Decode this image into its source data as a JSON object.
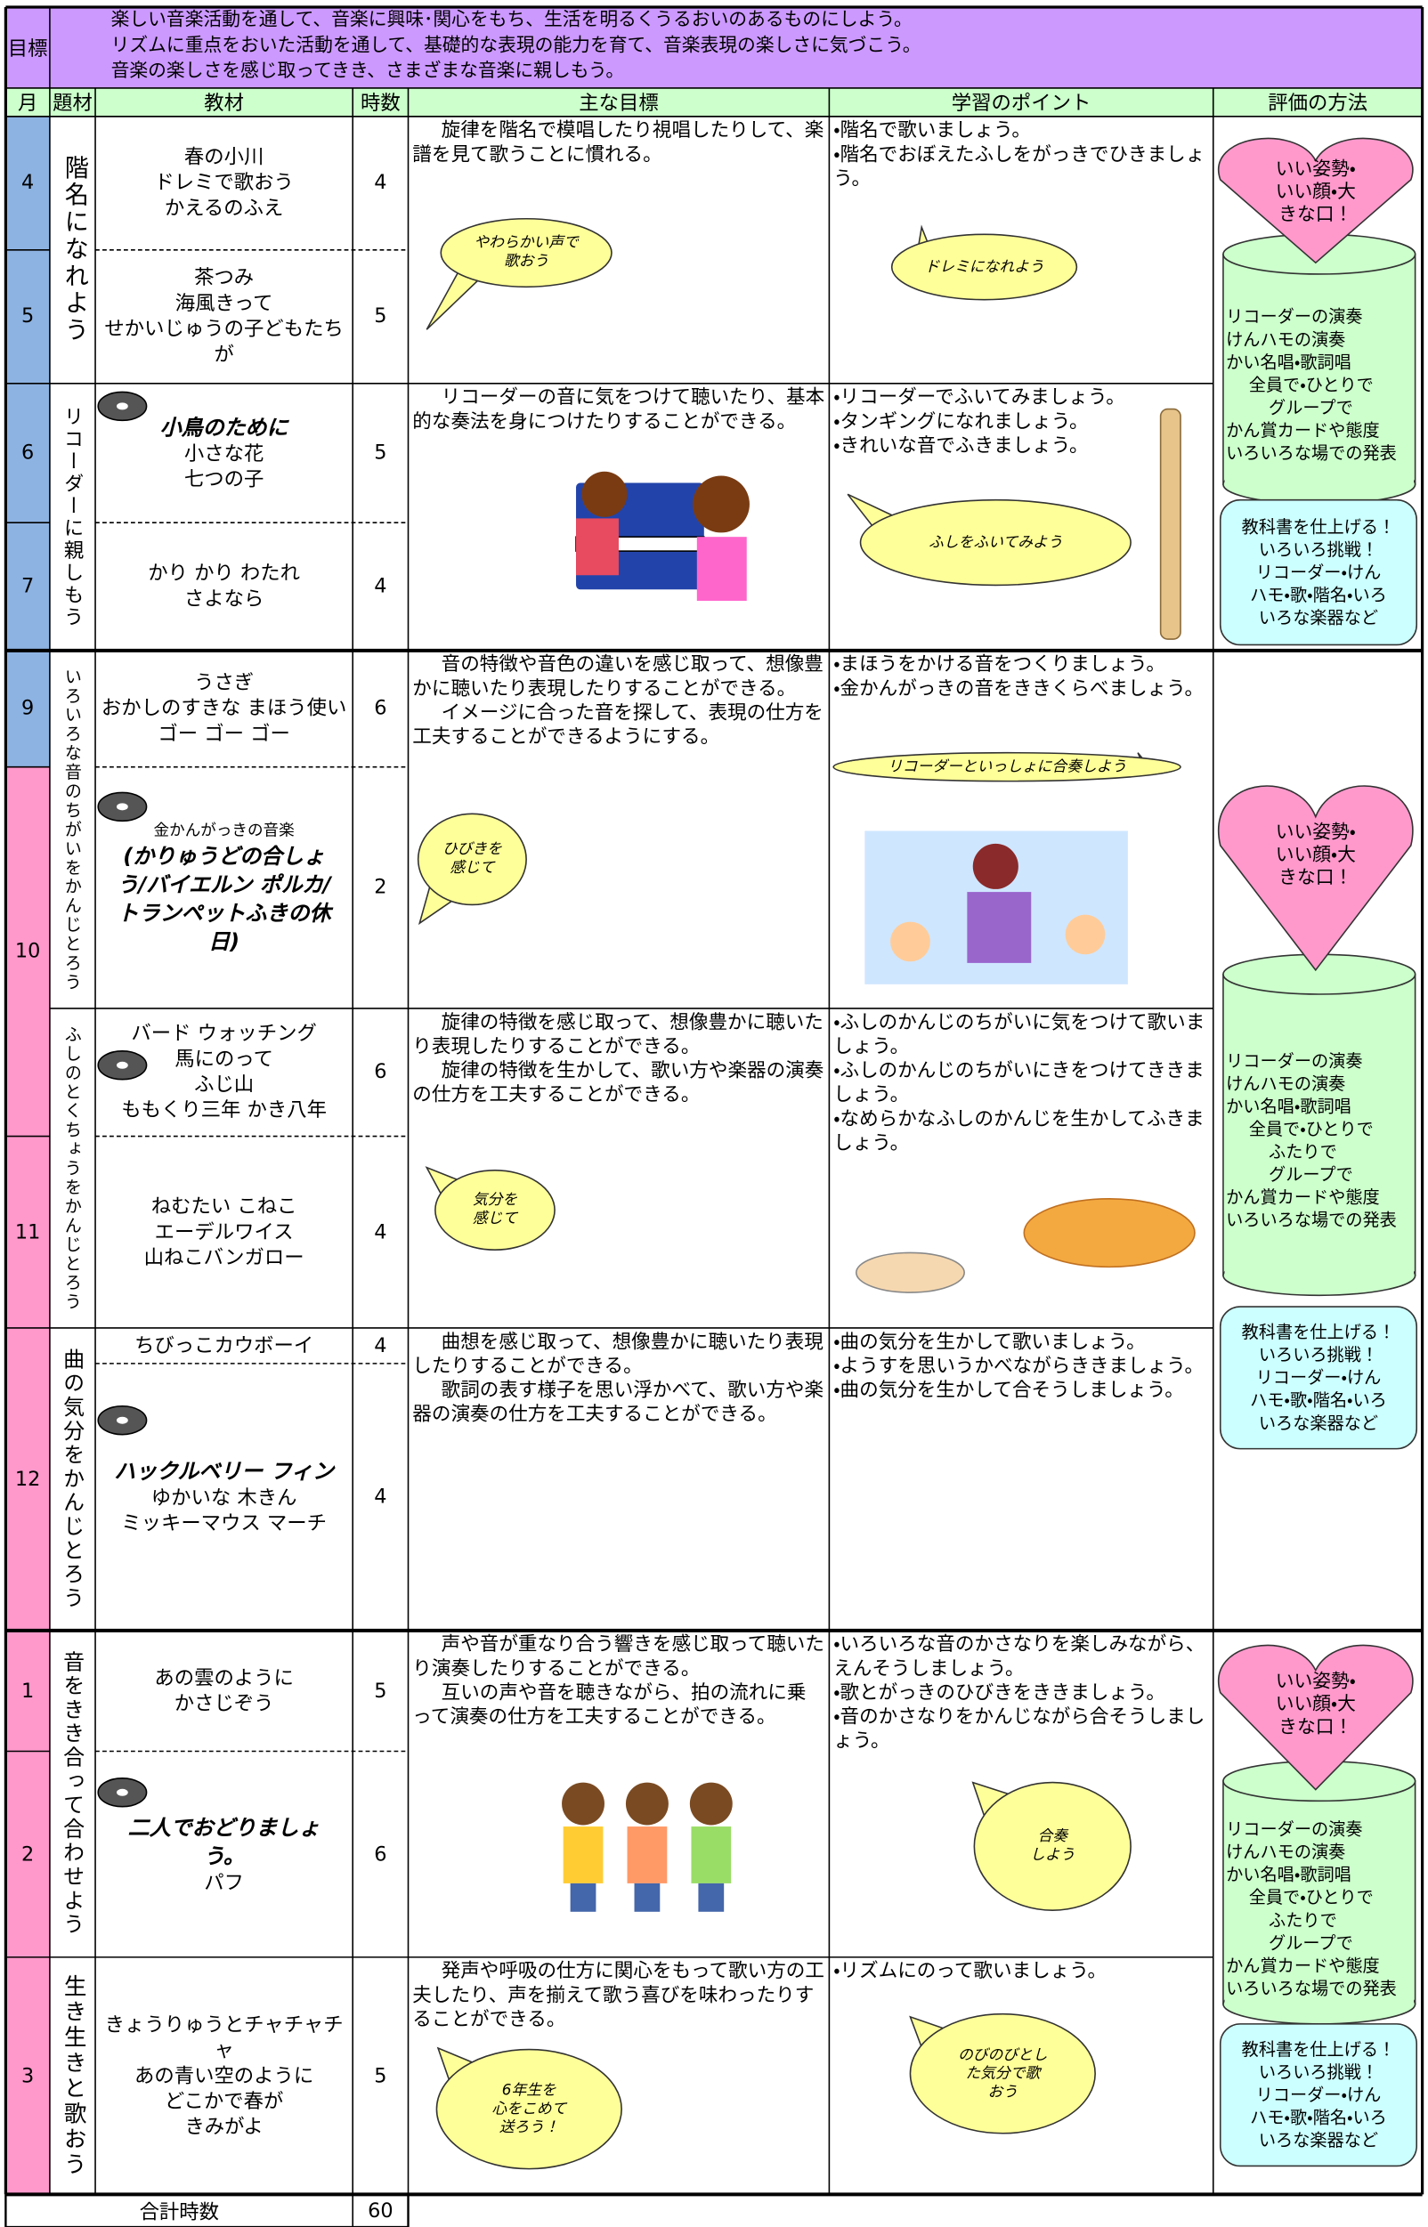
{
  "header": {
    "goal_label": "目標",
    "goals": [
      "楽しい音楽活動を通して、音楽に興味･関心をもち、生活を明るくうるおいのあるものにしよう。",
      "リズムに重点をおいた活動を通して、基礎的な表現の能力を育て、音楽表現の楽しさに気づこう。",
      "音楽の楽しさを感じ取ってきき、さまざまな音楽に親しもう。"
    ]
  },
  "columns": [
    "月",
    "題材",
    "教材",
    "時数",
    "主な目標",
    "学習のポイント",
    "評価の方法"
  ],
  "months": [
    "4",
    "5",
    "6",
    "7",
    "9",
    "10",
    "11",
    "12",
    "1",
    "2",
    "3"
  ],
  "themes": [
    "階名になれよう",
    "リコーダーに親しもう",
    "いろいろな音のちがいをかんじとろう",
    "ふしのとくちょうをかんじとろう",
    "曲の気分をかんじとろう",
    "音をきき合って合わせよう",
    "生き生きと歌おう"
  ],
  "materials": [
    {
      "lines": [
        "春の小川",
        "ドレミで歌おう",
        "かえるのふえ"
      ],
      "hours": 4
    },
    {
      "lines": [
        "茶つみ",
        "海風きって",
        "せかいじゅうの子どもたちが"
      ],
      "hours": 5
    },
    {
      "featured": "小鳥のために",
      "lines": [
        "小さな花",
        "七つの子"
      ],
      "hours": 5
    },
    {
      "lines": [
        "かり かり わたれ",
        "さよなら"
      ],
      "hours": 4
    },
    {
      "lines": [
        "うさぎ",
        "おかしのすきな まほう使い",
        "ゴー ゴー ゴー"
      ],
      "hours": 6
    },
    {
      "note": "金かんがっきの音楽",
      "featured": "(かりゅうどの合しょう/バイエルン ポルカ/トランペットふきの休日)",
      "hours": 2
    },
    {
      "lines": [
        "バード ウォッチング",
        "馬にのって",
        "ふじ山",
        "ももくり三年 かき八年"
      ],
      "hours": 6
    },
    {
      "lines": [
        "ねむたい こねこ",
        "エーデルワイス",
        "山ねこバンガロー"
      ],
      "hours": 4
    },
    {
      "lines": [
        "ちびっこカウボーイ"
      ],
      "hours": 4
    },
    {
      "featured": "ハックルベリー フィン",
      "lines": [
        "ゆかいな 木きん",
        "ミッキーマウス マーチ"
      ],
      "hours": 4
    },
    {
      "lines": [
        "あの雲のように",
        "かさじぞう"
      ],
      "hours": 5
    },
    {
      "featured": "二人でおどりましょう。",
      "lines": [
        "パフ"
      ],
      "hours": 6
    },
    {
      "lines": [
        "きょうりゅうとチャチャチャ",
        "あの青い空のように",
        "どこかで春が",
        "きみがよ"
      ],
      "hours": 5
    }
  ],
  "sections": [
    {
      "goals": [
        "旋律を階名で模唱したり視唱したりして、楽譜を見て歌うことに慣れる。"
      ],
      "points": [
        "・階名で歌いましょう。",
        "・階名でおぼえたふしをがっきでひきましょう。"
      ],
      "goal_bubble": [
        "やわらかい声で",
        "歌おう"
      ],
      "point_bubble": [
        "ドレミになれよう"
      ]
    },
    {
      "goals": [
        "リコーダーの音に気をつけて聴いたり、基本的な奏法を身につけたりすることができる。"
      ],
      "points": [
        "・リコーダーでふいてみましょう。",
        "・タンギングになれましょう。",
        "・きれいな音でふきましょう。"
      ],
      "point_bubble": [
        "ふしをふいてみよう"
      ]
    },
    {
      "goals": [
        "音の特徴や音色の違いを感じ取って、想像豊かに聴いたり表現したりすることができる。",
        "イメージに合った音を探して、表現の仕方を工夫することができるようにする。"
      ],
      "points": [
        "・まほうをかける音をつくりましょう。",
        "・金かんがっきの音をききくらべましょう。"
      ],
      "goal_bubble": [
        "ひびきを",
        "感じて"
      ],
      "point_bubble": [
        "リコーダーといっしょに合奏しよう"
      ]
    },
    {
      "goals": [
        "旋律の特徴を感じ取って、想像豊かに聴いたり表現したりすることができる。",
        "旋律の特徴を生かして、歌い方や楽器の演奏の仕方を工夫することができる。"
      ],
      "points": [
        "・ふしのかんじのちがいに気をつけて歌いましょう。",
        "・ふしのかんじのちがいにきをつけてききましょう。",
        "・なめらかなふしのかんじを生かしてふきましょう。"
      ],
      "goal_bubble": [
        "気分を",
        "感じて"
      ]
    },
    {
      "goals": [
        "曲想を感じ取って、想像豊かに聴いたり表現したりすることができる。",
        "歌詞の表す様子を思い浮かべて、歌い方や楽器の演奏の仕方を工夫することができる。"
      ],
      "points": [
        "・曲の気分を生かして歌いましょう。",
        "・ようすを思いうかべながらききましょう。",
        "・曲の気分を生かして合そうしましょう。"
      ]
    },
    {
      "goals": [
        "声や音が重なり合う響きを感じ取って聴いたり演奏したりすることができる。",
        "互いの声や音を聴きながら、拍の流れに乗って演奏の仕方を工夫することができる。"
      ],
      "points": [
        "・いろいろな音のかさなりを楽しみながら、えんそうしましょう。",
        "・歌とがっきのひびきをききましょう。",
        "・音のかさなりをかんじながら合そうしましょう。"
      ],
      "point_bubble": [
        "合奏",
        "しよう"
      ]
    },
    {
      "goals": [
        "発声や呼吸の仕方に関心をもって歌い方の工夫したり、声を揃えて歌う喜びを味わったりすることができる。"
      ],
      "points": [
        "・リズムにのって歌いましょう。"
      ],
      "goal_bubble": [
        "6年生を",
        "心をこめて",
        "送ろう！"
      ],
      "point_bubble": [
        "のびのびとし",
        "た気分で歌",
        "おう"
      ]
    }
  ],
  "evaluation": [
    {
      "heart": [
        "いい姿勢・",
        "いい顔・大",
        "きな口！"
      ],
      "cylinder": [
        "リコーダーの演奏",
        "けんハモの演奏",
        "かい名唱・歌詞唱",
        "全員で・ひとりで",
        "グループで",
        "かん賞カードや態度",
        "いろいろな場での発表"
      ],
      "bubble": [
        "教科書を仕上げる！",
        "いろいろ挑戦！",
        "リコーダー・けん",
        "ハモ・歌・階名・いろ",
        "いろな楽器など"
      ]
    },
    {
      "heart": [
        "いい姿勢・",
        "いい顔・大",
        "きな口！"
      ],
      "cylinder": [
        "リコーダーの演奏",
        "けんハモの演奏",
        "かい名唱・歌詞唱",
        "全員で・ひとりで",
        "ふたりで",
        "グループで",
        "かん賞カードや態度",
        "いろいろな場での発表"
      ],
      "bubble": [
        "教科書を仕上げる！",
        "いろいろ挑戦！",
        "リコーダー・けん",
        "ハモ・歌・階名・いろ",
        "いろな楽器など"
      ]
    },
    {
      "heart": [
        "いい姿勢・",
        "いい顔・大",
        "きな口！"
      ],
      "cylinder": [
        "リコーダーの演奏",
        "けんハモの演奏",
        "かい名唱・歌詞唱",
        "全員で・ひとりで",
        "ふたりで",
        "グループで",
        "かん賞カードや態度",
        "いろいろな場での発表"
      ],
      "bubble": [
        "教科書を仕上げる！",
        "いろいろ挑戦！",
        "リコーダー・けん",
        "ハモ・歌・階名・いろ",
        "いろな楽器など"
      ]
    }
  ],
  "total": {
    "label": "合計時数",
    "hours": 60
  }
}
